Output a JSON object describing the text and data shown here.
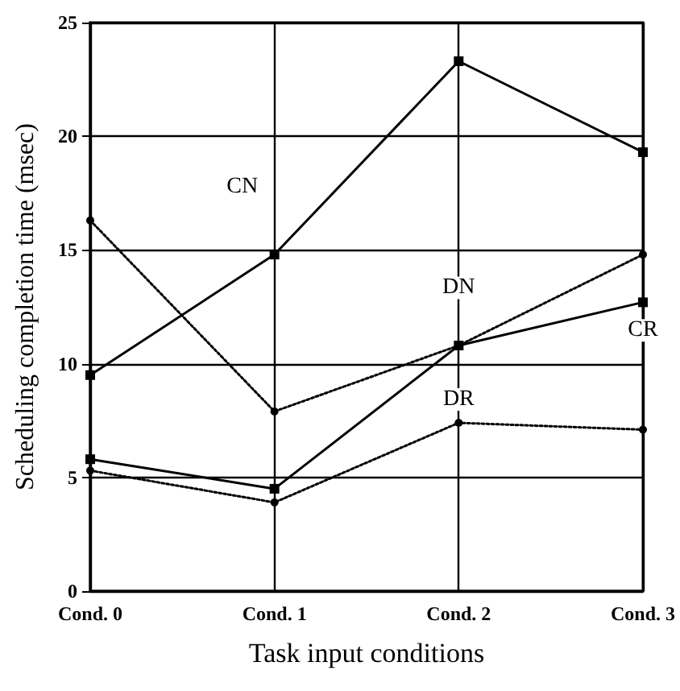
{
  "chart_data": {
    "type": "line",
    "xlabel": "Task input conditions",
    "ylabel": "Scheduling completion time (msec)",
    "categories": [
      "Cond. 0",
      "Cond. 1",
      "Cond. 2",
      "Cond. 3"
    ],
    "series": [
      {
        "name": "CN",
        "color": "#000000",
        "values": [
          9.5,
          14.8,
          23.3,
          19.3
        ],
        "marker": "square",
        "line_style": "solid"
      },
      {
        "name": "DN",
        "color": "#000000",
        "values": [
          16.3,
          7.9,
          10.8,
          14.8
        ],
        "marker": "circle",
        "line_style": "dotted"
      },
      {
        "name": "CR",
        "color": "#000000",
        "values": [
          5.8,
          4.5,
          10.8,
          12.7
        ],
        "marker": "square",
        "line_style": "solid"
      },
      {
        "name": "DR",
        "color": "#000000",
        "values": [
          5.3,
          3.9,
          7.4,
          7.1
        ],
        "marker": "circle",
        "line_style": "dotted"
      }
    ],
    "ylim": [
      0,
      25
    ],
    "yticks": [
      0,
      5,
      10,
      15,
      20,
      25
    ],
    "grid": true,
    "legend": false
  }
}
